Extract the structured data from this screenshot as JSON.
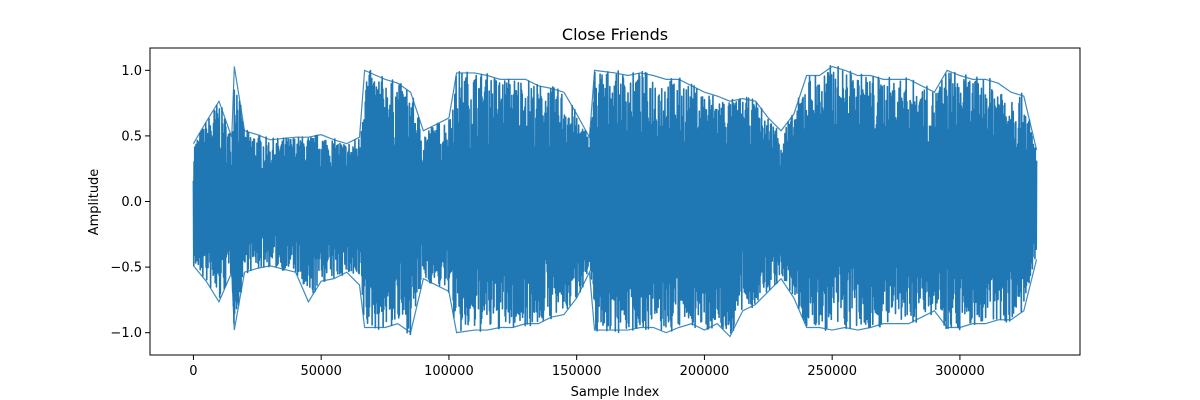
{
  "chart_data": {
    "type": "line",
    "title": "Close Friends",
    "xlabel": "Sample Index",
    "ylabel": "Amplitude",
    "xlim": [
      -17000,
      347000
    ],
    "ylim": [
      -1.17,
      1.17
    ],
    "xticks": [
      0,
      50000,
      100000,
      150000,
      200000,
      250000,
      300000
    ],
    "xtick_labels": [
      "0",
      "50000",
      "100000",
      "150000",
      "200000",
      "250000",
      "300000"
    ],
    "yticks": [
      -1.0,
      -0.5,
      0.0,
      0.5,
      1.0
    ],
    "ytick_labels": [
      "−1.0",
      "−0.5",
      "0.0",
      "0.5",
      "1.0"
    ],
    "grid": false,
    "series": [
      {
        "color": "#1f77b4",
        "x": [
          0,
          5000,
          10000,
          15000,
          16000,
          20000,
          25000,
          30000,
          40000,
          45000,
          50000,
          55000,
          60000,
          65000,
          67000,
          75000,
          80000,
          85000,
          90000,
          95000,
          100000,
          103000,
          110000,
          115000,
          120000,
          125000,
          130000,
          135000,
          140000,
          145000,
          150000,
          155000,
          157000,
          165000,
          170000,
          175000,
          180000,
          185000,
          190000,
          195000,
          200000,
          205000,
          210000,
          215000,
          220000,
          225000,
          230000,
          235000,
          240000,
          245000,
          250000,
          255000,
          260000,
          265000,
          270000,
          275000,
          280000,
          285000,
          290000,
          295000,
          300000,
          305000,
          310000,
          315000,
          320000,
          325000,
          330000
        ],
        "upper": [
          0.45,
          0.62,
          0.78,
          0.5,
          1.05,
          0.55,
          0.52,
          0.48,
          0.5,
          0.5,
          0.52,
          0.48,
          0.45,
          0.5,
          1.02,
          0.95,
          0.92,
          0.85,
          0.55,
          0.6,
          0.65,
          1.0,
          1.0,
          0.98,
          0.95,
          0.95,
          0.95,
          0.9,
          0.88,
          0.85,
          0.68,
          0.5,
          1.02,
          1.0,
          0.98,
          1.0,
          0.98,
          0.95,
          0.95,
          0.9,
          0.85,
          0.82,
          0.78,
          0.8,
          0.78,
          0.65,
          0.55,
          0.68,
          0.98,
          0.98,
          1.05,
          1.02,
          0.98,
          0.98,
          0.95,
          0.95,
          0.95,
          0.9,
          0.85,
          1.02,
          0.98,
          0.95,
          0.95,
          0.92,
          0.85,
          0.82,
          0.4
        ],
        "lower": [
          -0.5,
          -0.62,
          -0.78,
          -0.55,
          -1.0,
          -0.55,
          -0.52,
          -0.5,
          -0.55,
          -0.78,
          -0.62,
          -0.6,
          -0.55,
          -0.65,
          -0.98,
          -0.98,
          -0.95,
          -1.02,
          -0.6,
          -0.65,
          -0.7,
          -1.02,
          -1.0,
          -1.0,
          -0.98,
          -0.98,
          -0.95,
          -0.95,
          -0.9,
          -0.88,
          -0.75,
          -0.55,
          -1.0,
          -1.0,
          -1.0,
          -0.98,
          -0.98,
          -1.02,
          -0.98,
          -0.95,
          -1.0,
          -0.95,
          -1.05,
          -0.85,
          -0.8,
          -0.7,
          -0.6,
          -0.75,
          -0.98,
          -0.98,
          -1.0,
          -0.98,
          -1.0,
          -0.98,
          -0.95,
          -0.95,
          -0.95,
          -0.9,
          -0.85,
          -0.98,
          -0.98,
          -0.95,
          -0.95,
          -0.92,
          -0.92,
          -0.85,
          -0.45
        ]
      }
    ]
  }
}
